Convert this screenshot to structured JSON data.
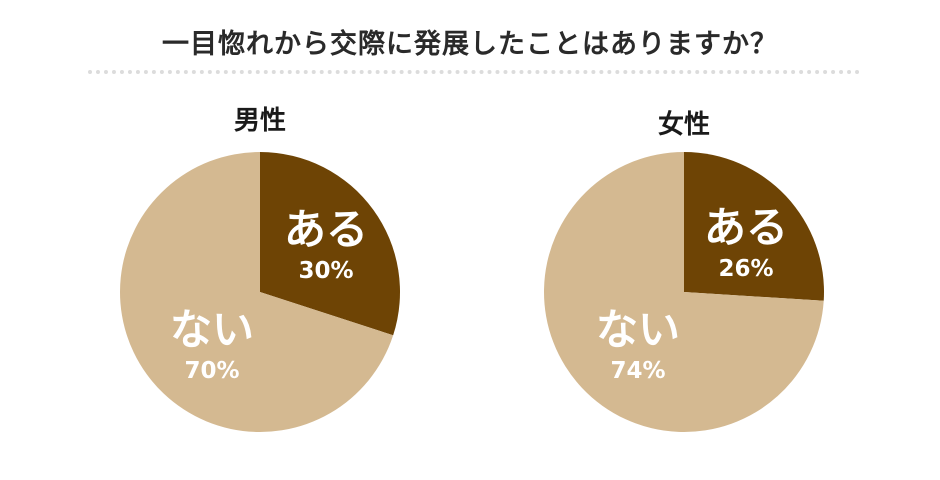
{
  "title": "一目惚れから交際に発展したことはありますか？",
  "colors": {
    "yes": "#6e4405",
    "no": "#d4b991"
  },
  "chart_data": [
    {
      "type": "pie",
      "title": "男性",
      "slices": [
        {
          "label": "ある",
          "value": 30,
          "value_label": "30%",
          "color": "#6e4405"
        },
        {
          "label": "ない",
          "value": 70,
          "value_label": "70%",
          "color": "#d4b991"
        }
      ]
    },
    {
      "type": "pie",
      "title": "女性",
      "slices": [
        {
          "label": "ある",
          "value": 26,
          "value_label": "26%",
          "color": "#6e4405"
        },
        {
          "label": "ない",
          "value": 74,
          "value_label": "74%",
          "color": "#d4b991"
        }
      ]
    }
  ]
}
